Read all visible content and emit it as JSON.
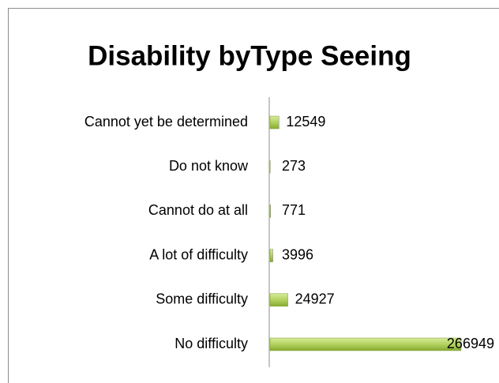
{
  "chart_data": {
    "type": "bar",
    "orientation": "horizontal",
    "title": "Disability byType Seeing",
    "categories": [
      "Cannot yet be determined",
      "Do not know",
      "Cannot do at all",
      "A lot of difficulty",
      "Some difficulty",
      "No difficulty"
    ],
    "values": [
      12549,
      273,
      771,
      3996,
      24927,
      266949
    ],
    "color": "#9bc047"
  }
}
